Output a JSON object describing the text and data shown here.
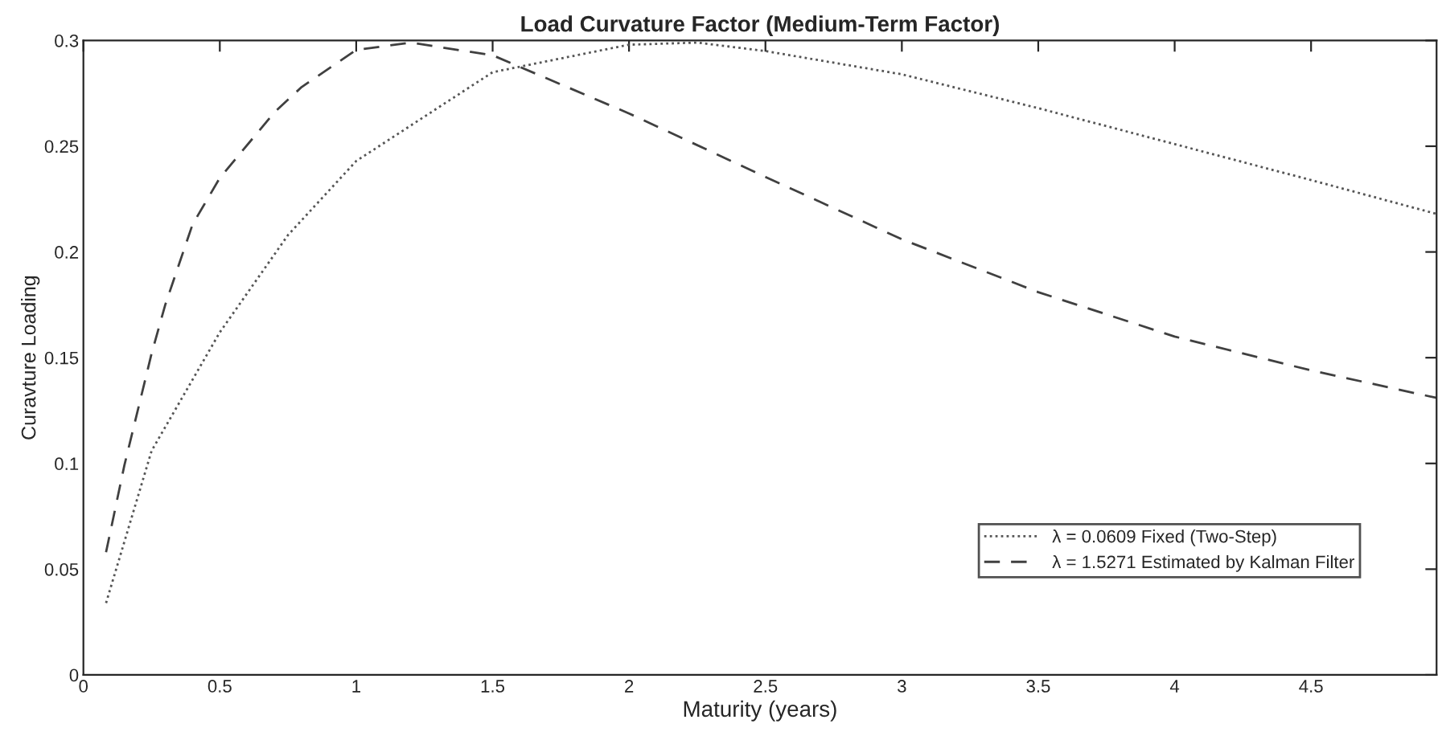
{
  "chart_data": {
    "type": "line",
    "title": "Load Curvature Factor (Medium-Term Factor)",
    "xlabel": "Maturity (years)",
    "ylabel": "Curavture Loading",
    "xlim": [
      0,
      4.96
    ],
    "ylim": [
      0,
      0.3
    ],
    "xticks": [
      0,
      0.5,
      1,
      1.5,
      2,
      2.5,
      3,
      3.5,
      4,
      4.5
    ],
    "yticks": [
      0,
      0.05,
      0.1,
      0.15,
      0.2,
      0.25,
      0.3
    ],
    "grid": false,
    "legend": "bottom right",
    "marker": "none",
    "series": [
      {
        "name": "λ = 0.0609 Fixed (Two-Step)",
        "color": "#555555",
        "line_style": "dotted",
        "x": [
          0.083,
          0.25,
          0.5,
          0.75,
          1.0,
          1.5,
          2.0,
          2.25,
          2.5,
          3.0,
          3.5,
          4.0,
          4.5,
          4.96
        ],
        "values": [
          0.034,
          0.106,
          0.162,
          0.208,
          0.243,
          0.285,
          0.298,
          0.299,
          0.295,
          0.284,
          0.268,
          0.251,
          0.234,
          0.218
        ]
      },
      {
        "name": "λ = 1.5271 Estimated by Kalman Filter",
        "color": "#404040",
        "line_style": "dashed",
        "x": [
          0.083,
          0.15,
          0.25,
          0.3,
          0.4,
          0.5,
          0.7,
          0.8,
          1.0,
          1.2,
          1.5,
          2.0,
          2.5,
          3.0,
          3.5,
          4.0,
          4.5,
          4.96
        ],
        "values": [
          0.058,
          0.099,
          0.152,
          0.175,
          0.213,
          0.235,
          0.266,
          0.278,
          0.2955,
          0.299,
          0.293,
          0.2655,
          0.2355,
          0.206,
          0.181,
          0.16,
          0.144,
          0.131
        ]
      }
    ]
  }
}
